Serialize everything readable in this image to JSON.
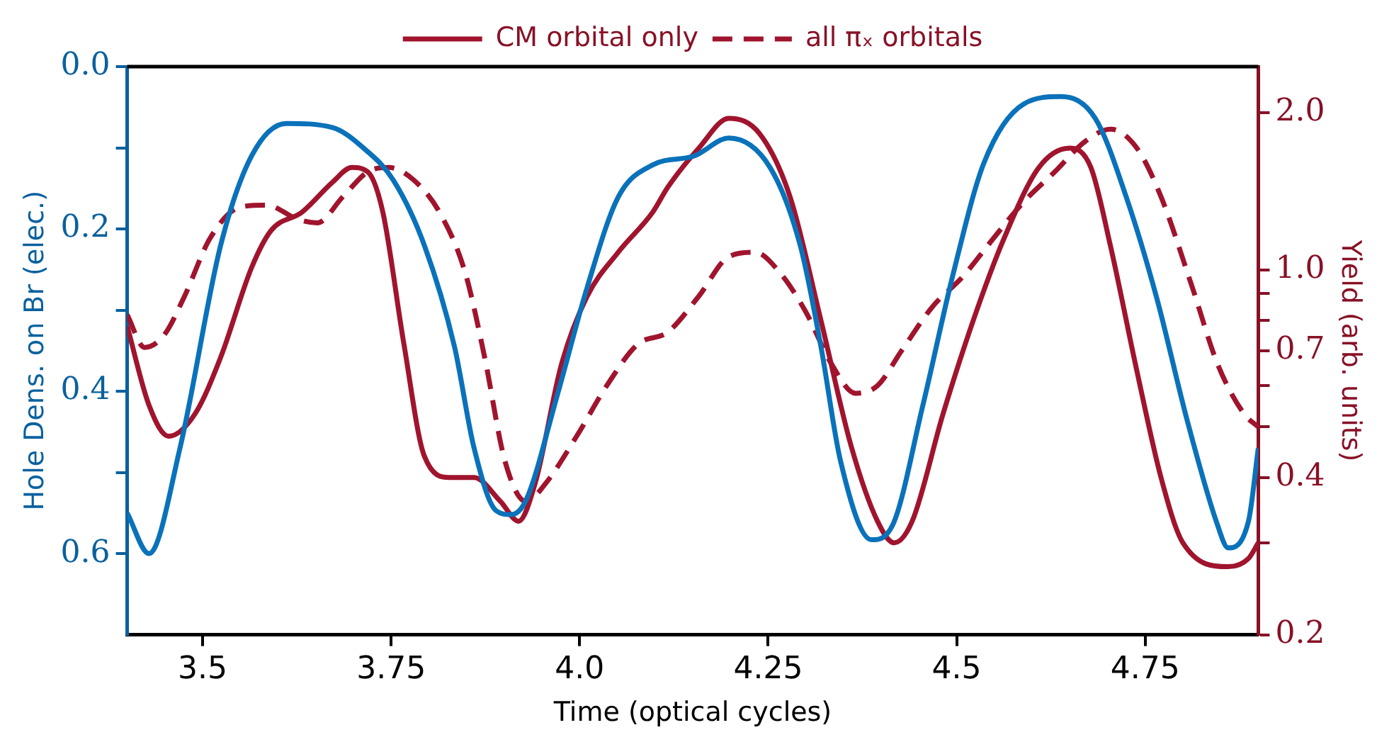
{
  "chart_data": {
    "type": "line",
    "xlabel": "Time (optical cycles)",
    "ylabel": "Hole Dens. on Br (elec.)",
    "y2label": "Yield (arb. units)",
    "xlim": [
      3.4,
      4.9
    ],
    "xticks": [
      3.5,
      3.75,
      {
        "value": 4.0,
        "label": "4.0"
      },
      4.25,
      4.5,
      4.75
    ],
    "ylim": [
      0.7,
      0.0
    ],
    "yticks": [
      {
        "value": 0,
        "label": "0.0"
      },
      {
        "value": 0.1,
        "label": null
      },
      0.2,
      {
        "value": 0.3,
        "label": null
      },
      0.4,
      {
        "value": 0.5,
        "label": null
      },
      0.6
    ],
    "y2lim": [
      0.2,
      2.45
    ],
    "y2ticks": [
      0.2,
      {
        "value": 0.3,
        "label": null
      },
      0.4,
      {
        "value": 0.5,
        "label": null
      },
      {
        "value": 0.6,
        "label": null
      },
      0.7,
      {
        "value": 0.8,
        "label": null
      },
      {
        "value": 0.9,
        "label": null
      },
      {
        "value": 1.0,
        "label": "1.0"
      },
      {
        "value": 2.0,
        "label": "2.0"
      }
    ],
    "log": "y2",
    "grid": false,
    "legend": "top",
    "series": [
      {
        "color": "#0a72ba",
        "axis": "y",
        "line_style": "solid",
        "x": [
          3.4,
          3.429,
          3.47,
          3.524,
          3.565,
          3.611,
          3.672,
          3.713,
          3.753,
          3.794,
          3.834,
          3.86,
          3.889,
          3.909,
          3.929,
          3.97,
          4.01,
          4.051,
          4.097,
          4.152,
          4.198,
          4.253,
          4.293,
          4.32,
          4.346,
          4.387,
          4.415,
          4.455,
          4.496,
          4.536,
          4.589,
          4.638,
          4.684,
          4.725,
          4.765,
          4.806,
          4.846,
          4.86,
          4.887,
          4.9
        ],
        "values": [
          0.55,
          0.6,
          0.47,
          0.22,
          0.11,
          0.07,
          0.075,
          0.1,
          0.14,
          0.22,
          0.345,
          0.47,
          0.547,
          0.552,
          0.534,
          0.406,
          0.272,
          0.161,
          0.121,
          0.11,
          0.088,
          0.125,
          0.222,
          0.345,
          0.486,
          0.583,
          0.565,
          0.418,
          0.253,
          0.119,
          0.046,
          0.037,
          0.064,
          0.161,
          0.284,
          0.437,
          0.565,
          0.593,
          0.56,
          0.47
        ]
      },
      {
        "name": "CM orbital only",
        "color": "#a0142d",
        "axis": "y2",
        "line_style": "solid",
        "x": [
          3.4,
          3.429,
          3.455,
          3.49,
          3.524,
          3.565,
          3.591,
          3.632,
          3.672,
          3.698,
          3.719,
          3.739,
          3.767,
          3.794,
          3.828,
          3.86,
          3.895,
          3.919,
          3.941,
          3.976,
          4.01,
          4.051,
          4.097,
          4.117,
          4.158,
          4.198,
          4.239,
          4.279,
          4.32,
          4.36,
          4.395,
          4.417,
          4.441,
          4.482,
          4.522,
          4.563,
          4.609,
          4.65,
          4.678,
          4.704,
          4.739,
          4.771,
          4.8,
          4.86,
          4.887,
          4.9
        ],
        "values": [
          0.78,
          0.55,
          0.48,
          0.53,
          0.68,
          1.01,
          1.19,
          1.29,
          1.47,
          1.57,
          1.54,
          1.29,
          0.72,
          0.44,
          0.4,
          0.4,
          0.36,
          0.33,
          0.39,
          0.66,
          0.89,
          1.08,
          1.29,
          1.44,
          1.71,
          1.95,
          1.82,
          1.38,
          0.8,
          0.46,
          0.33,
          0.3,
          0.33,
          0.53,
          0.8,
          1.15,
          1.57,
          1.71,
          1.57,
          1.11,
          0.64,
          0.4,
          0.3,
          0.27,
          0.28,
          0.3
        ]
      },
      {
        "name": "all πₓ orbitals",
        "color": "#a0142d",
        "axis": "y2",
        "line_style": "dashed",
        "x": [
          3.4,
          3.423,
          3.449,
          3.476,
          3.51,
          3.551,
          3.585,
          3.626,
          3.652,
          3.686,
          3.719,
          3.747,
          3.779,
          3.814,
          3.848,
          3.874,
          3.901,
          3.929,
          3.955,
          3.996,
          4.036,
          4.077,
          4.117,
          4.158,
          4.198,
          4.233,
          4.265,
          4.3,
          4.334,
          4.366,
          4.395,
          4.427,
          4.468,
          4.508,
          4.549,
          4.589,
          4.63,
          4.67,
          4.704,
          4.739,
          4.771,
          4.812,
          4.846,
          4.881,
          4.9
        ],
        "values": [
          0.82,
          0.71,
          0.75,
          0.89,
          1.15,
          1.32,
          1.33,
          1.25,
          1.23,
          1.38,
          1.54,
          1.57,
          1.49,
          1.29,
          0.99,
          0.68,
          0.43,
          0.36,
          0.39,
          0.48,
          0.6,
          0.72,
          0.76,
          0.89,
          1.06,
          1.08,
          0.99,
          0.83,
          0.66,
          0.58,
          0.6,
          0.7,
          0.85,
          0.97,
          1.15,
          1.35,
          1.54,
          1.76,
          1.86,
          1.71,
          1.38,
          0.93,
          0.66,
          0.53,
          0.5
        ]
      }
    ]
  }
}
